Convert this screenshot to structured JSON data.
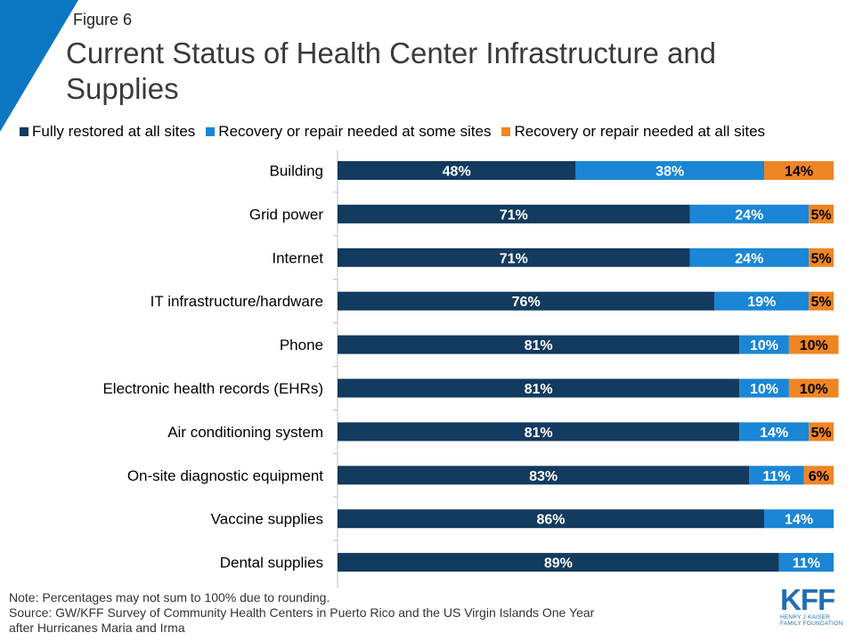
{
  "figure_label": "Figure 6",
  "colors": {
    "corner": "#0b77c3",
    "series": [
      "#133a5f",
      "#1a86d5",
      "#f08523"
    ],
    "logo": "#1f6fb2"
  },
  "chart_data": {
    "type": "bar",
    "orientation": "horizontal",
    "stacked": true,
    "title": "Current Status of Health Center Infrastructure and Supplies",
    "categories": [
      "Building",
      "Grid power",
      "Internet",
      "IT infrastructure/hardware",
      "Phone",
      "Electronic health records (EHRs)",
      "Air conditioning system",
      "On-site diagnostic equipment",
      "Vaccine supplies",
      "Dental supplies"
    ],
    "series": [
      {
        "name": "Fully restored at all sites",
        "values": [
          48,
          71,
          71,
          76,
          81,
          81,
          81,
          83,
          86,
          89
        ]
      },
      {
        "name": "Recovery or repair needed at some sites",
        "values": [
          38,
          24,
          24,
          19,
          10,
          10,
          14,
          11,
          14,
          11
        ]
      },
      {
        "name": "Recovery or repair needed at all sites",
        "values": [
          14,
          5,
          5,
          5,
          10,
          10,
          5,
          6,
          0,
          0
        ]
      }
    ],
    "value_suffix": "%",
    "xlim": [
      0,
      100
    ],
    "legend_position": "top",
    "grid": false
  },
  "note": {
    "line1": "Note: Percentages may not sum to 100% due to rounding.",
    "line2": "Source: GW/KFF Survey of Community Health Centers in Puerto Rico and the US Virgin Islands One Year",
    "line3": "after Hurricanes Maria and Irma"
  },
  "logo": {
    "mark": "KFF",
    "line1": "HENRY J KAISER",
    "line2": "FAMILY FOUNDATION"
  }
}
